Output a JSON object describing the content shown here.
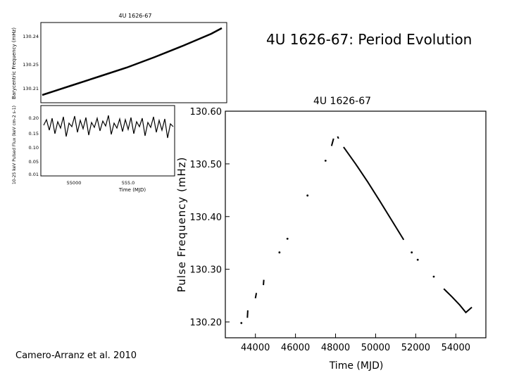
{
  "slide": {
    "title": "4U 1626-67: Period Evolution",
    "citation": "Camero-Arranz et al. 2010"
  },
  "chart_data": [
    {
      "type": "line",
      "title": "4U 1626-67",
      "xlabel": "Time (MJD)",
      "ylabel": "Pulse Frequency (mHz)",
      "xlim": [
        42500,
        55500
      ],
      "ylim": [
        130.17,
        130.6
      ],
      "x_ticks": [
        "44000",
        "46000",
        "48000",
        "50000",
        "52000",
        "54000"
      ],
      "y_ticks": [
        "130.20",
        "130.30",
        "130.40",
        "130.50",
        "130.60"
      ],
      "grid": false,
      "series": [
        {
          "segments": [
            {
              "x": [
                43300
              ],
              "y": [
                130.198
              ]
            },
            {
              "x": [
                43600,
                43620
              ],
              "y": [
                130.208,
                130.222
              ]
            },
            {
              "x": [
                44000,
                44050
              ],
              "y": [
                130.245,
                130.255
              ]
            },
            {
              "x": [
                44400,
                44420
              ],
              "y": [
                130.27,
                130.28
              ]
            },
            {
              "x": [
                45200
              ],
              "y": [
                130.332
              ]
            },
            {
              "x": [
                45600
              ],
              "y": [
                130.358
              ]
            },
            {
              "x": [
                46600
              ],
              "y": [
                130.44
              ]
            },
            {
              "x": [
                47500
              ],
              "y": [
                130.506
              ]
            },
            {
              "x": [
                47800,
                47900
              ],
              "y": [
                130.534,
                130.548
              ]
            },
            {
              "x": [
                48100,
                48150
              ],
              "y": [
                130.552,
                130.548
              ]
            },
            {
              "x": [
                48400,
                49000,
                49600,
                50200,
                50800,
                51400
              ],
              "y": [
                130.532,
                130.5,
                130.466,
                130.43,
                130.393,
                130.356
              ]
            },
            {
              "x": [
                51800
              ],
              "y": [
                130.332
              ]
            },
            {
              "x": [
                52100
              ],
              "y": [
                130.318
              ]
            },
            {
              "x": [
                52900
              ],
              "y": [
                130.286
              ]
            },
            {
              "x": [
                53400,
                53800,
                54200,
                54500,
                54800
              ],
              "y": [
                130.263,
                130.248,
                130.232,
                130.218,
                130.228
              ]
            }
          ]
        }
      ]
    },
    {
      "type": "line",
      "title": "4U 1626-67",
      "panels": [
        {
          "ylabel": "Barycentric Frequency (mHz)",
          "y_ticks": [
            "130.24",
            "130.25",
            "130.21"
          ],
          "series": [
            {
              "x": [
                54620,
                54750,
                54900,
                55050,
                55200,
                55380
              ],
              "y": [
                130.198,
                130.206,
                130.216,
                130.227,
                130.239,
                130.252
              ]
            }
          ]
        },
        {
          "ylabel": "10-25 keV Pulsed Flux (keV cm-2 s-1)",
          "y_ticks": [
            "0.20",
            "0.15",
            "0.10",
            "0.05",
            "0.01"
          ],
          "xlabel": "Time (MJD)",
          "x_ticks": [
            "55000",
            "555.0"
          ],
          "series": [
            {
              "x": [
                54620,
                54800,
                55000,
                55200,
                55380
              ],
              "y": [
                0.17,
                0.175,
                0.172,
                0.168,
                0.17
              ]
            }
          ]
        }
      ]
    }
  ]
}
